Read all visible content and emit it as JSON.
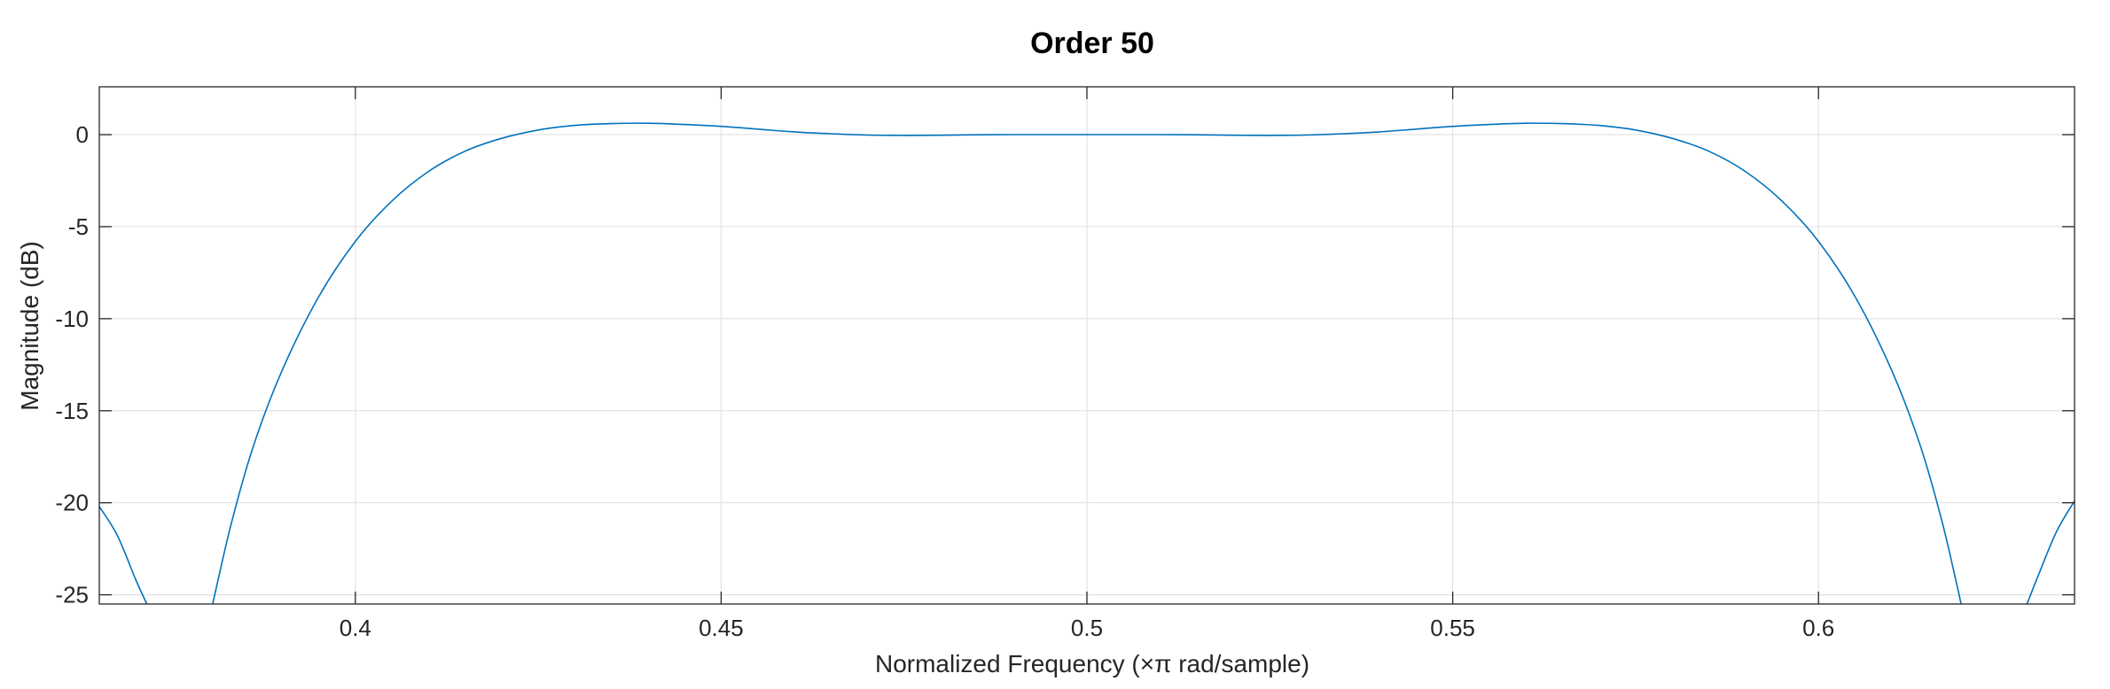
{
  "chart_data": {
    "type": "line",
    "title": "Order 50",
    "xlabel": "Normalized Frequency  (×π rad/sample)",
    "ylabel": "Magnitude (dB)",
    "xlim": [
      0.365,
      0.635
    ],
    "ylim": [
      -25.5,
      2.6
    ],
    "xticks": [
      0.4,
      0.45,
      0.5,
      0.55,
      0.6
    ],
    "xtick_labels": [
      "0.4",
      "0.45",
      "0.5",
      "0.55",
      "0.6"
    ],
    "yticks": [
      0,
      -5,
      -10,
      -15,
      -20,
      -25
    ],
    "ytick_labels": [
      "0",
      "-5",
      "-10",
      "-15",
      "-20",
      "-25"
    ],
    "grid": true,
    "series": [
      {
        "color": "#0072bd",
        "segments": [
          {
            "x": [
              0.365,
              0.3675,
              0.37,
              0.3715
            ],
            "y": [
              -20.2,
              -21.8,
              -24.2,
              -25.5
            ]
          },
          {
            "x": [
              0.3805,
              0.383,
              0.386,
              0.39,
              0.395,
              0.4,
              0.405,
              0.41,
              0.415,
              0.42,
              0.425,
              0.43,
              0.435,
              0.44,
              0.445,
              0.45,
              0.455,
              0.46,
              0.465,
              0.47,
              0.475,
              0.48,
              0.485,
              0.49,
              0.495,
              0.5,
              0.505,
              0.51,
              0.515,
              0.52,
              0.525,
              0.53,
              0.535,
              0.54,
              0.545,
              0.55,
              0.555,
              0.56,
              0.565,
              0.57,
              0.575,
              0.58,
              0.585,
              0.59,
              0.595,
              0.6,
              0.605,
              0.61,
              0.614,
              0.617,
              0.6195
            ],
            "y": [
              -25.5,
              -21.2,
              -17.0,
              -12.8,
              -8.8,
              -5.8,
              -3.6,
              -2.0,
              -0.9,
              -0.2,
              0.25,
              0.5,
              0.6,
              0.62,
              0.55,
              0.45,
              0.3,
              0.15,
              0.05,
              -0.02,
              -0.04,
              -0.03,
              -0.01,
              0.0,
              0.0,
              0.0,
              0.0,
              0.0,
              -0.01,
              -0.03,
              -0.04,
              -0.02,
              0.05,
              0.15,
              0.3,
              0.45,
              0.55,
              0.62,
              0.6,
              0.5,
              0.25,
              -0.2,
              -0.9,
              -2.0,
              -3.6,
              -5.8,
              -8.8,
              -12.8,
              -17.0,
              -21.2,
              -25.5
            ]
          },
          {
            "x": [
              0.6285,
              0.63,
              0.6325,
              0.635
            ],
            "y": [
              -25.5,
              -24.0,
              -21.6,
              -19.9
            ]
          }
        ]
      }
    ]
  }
}
